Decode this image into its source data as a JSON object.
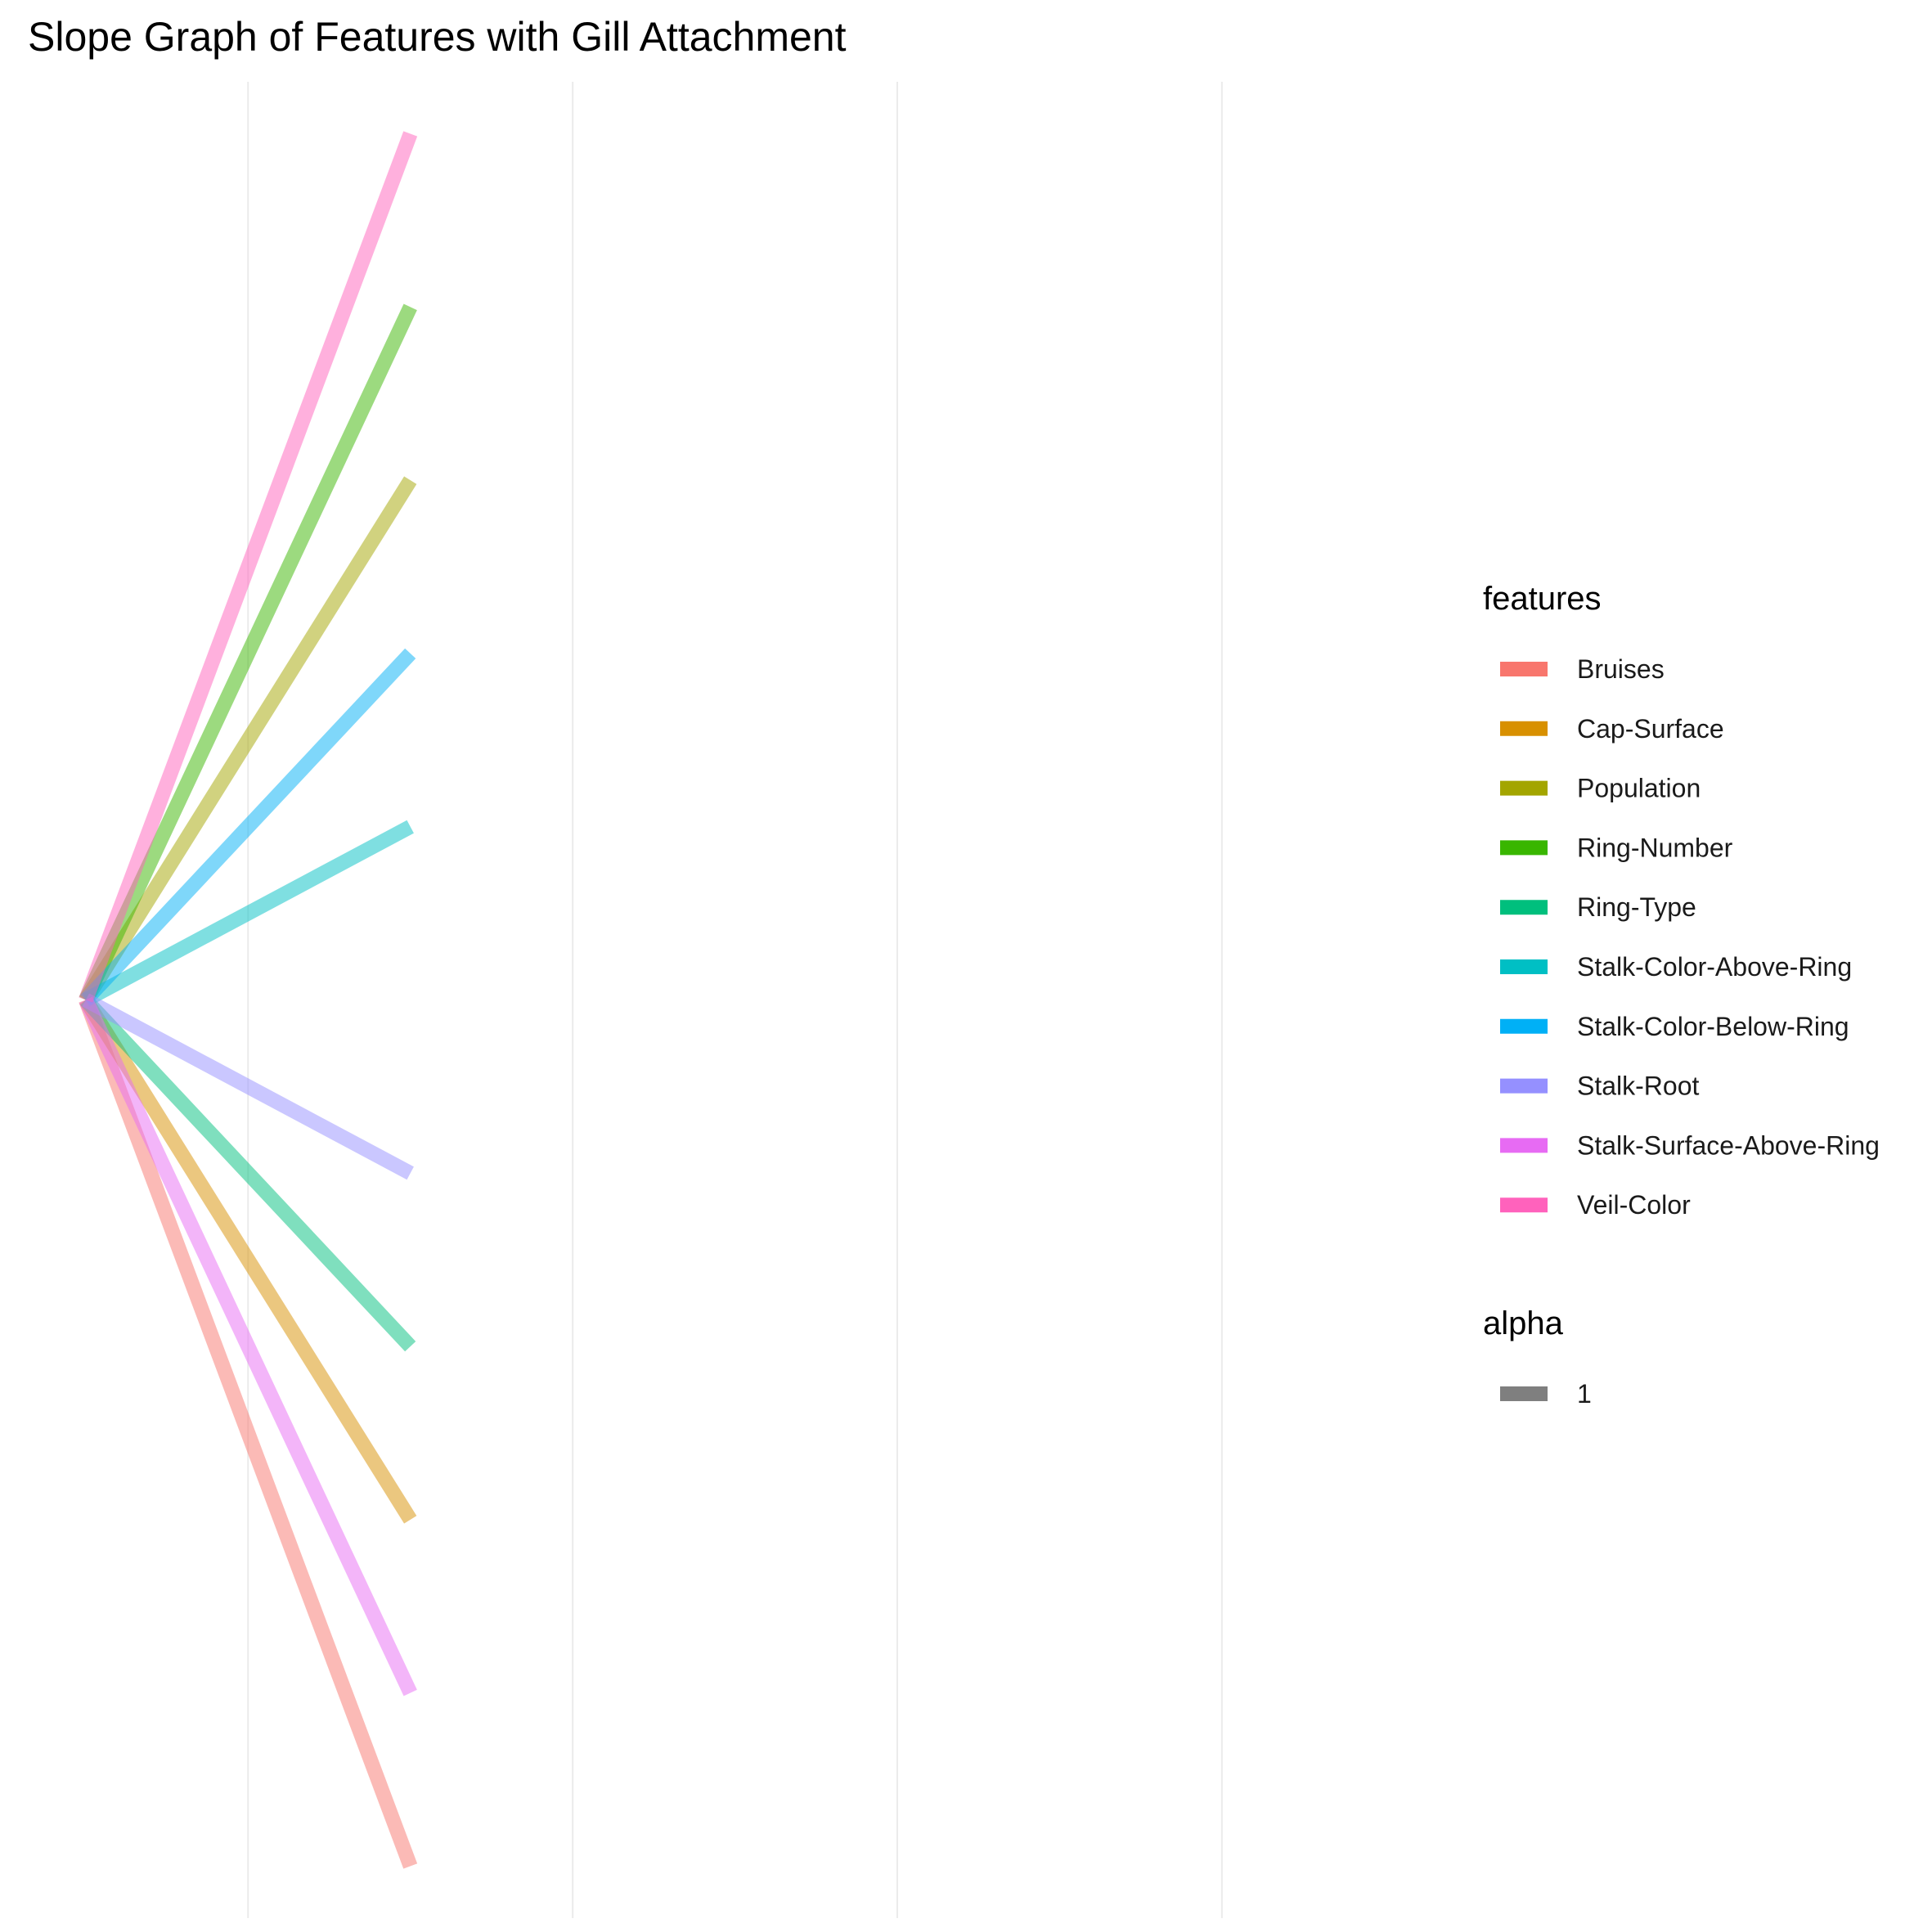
{
  "chart_data": {
    "type": "line",
    "subtype": "slope",
    "title": "Slope Graph of Features with Gill Attachment",
    "xlabel": "",
    "ylabel": "",
    "x": [
      1,
      2
    ],
    "xlim": [
      0.95,
      5.1
    ],
    "ylim": [
      -5.3,
      5.3
    ],
    "grid": {
      "vertical_major": [
        1.5,
        2.5,
        3.5,
        4.5
      ],
      "horizontal": false
    },
    "axis_text_visible": false,
    "line_alpha": 0.5,
    "series": [
      {
        "name": "Bruises",
        "values": [
          0,
          -5
        ],
        "color": "#F8766D"
      },
      {
        "name": "Cap-Surface",
        "values": [
          0,
          -3
        ],
        "color": "#D89000"
      },
      {
        "name": "Population",
        "values": [
          0,
          3
        ],
        "color": "#A3A500"
      },
      {
        "name": "Ring-Number",
        "values": [
          0,
          4
        ],
        "color": "#39B600"
      },
      {
        "name": "Ring-Type",
        "values": [
          0,
          -2
        ],
        "color": "#00BF7D"
      },
      {
        "name": "Stalk-Color-Above-Ring",
        "values": [
          0,
          1
        ],
        "color": "#00BFC4"
      },
      {
        "name": "Stalk-Color-Below-Ring",
        "values": [
          0,
          2
        ],
        "color": "#00B0F6"
      },
      {
        "name": "Stalk-Root",
        "values": [
          0,
          -1
        ],
        "color": "#9590FF"
      },
      {
        "name": "Stalk-Surface-Above-Ring",
        "values": [
          0,
          -4
        ],
        "color": "#E76BF3"
      },
      {
        "name": "Veil-Color",
        "values": [
          0,
          5
        ],
        "color": "#FF62BC"
      }
    ],
    "legends": [
      {
        "title": "features",
        "placement": "right"
      },
      {
        "title": "alpha",
        "entries": [
          "1"
        ],
        "color": "#7f7f7f",
        "placement": "right"
      }
    ]
  }
}
